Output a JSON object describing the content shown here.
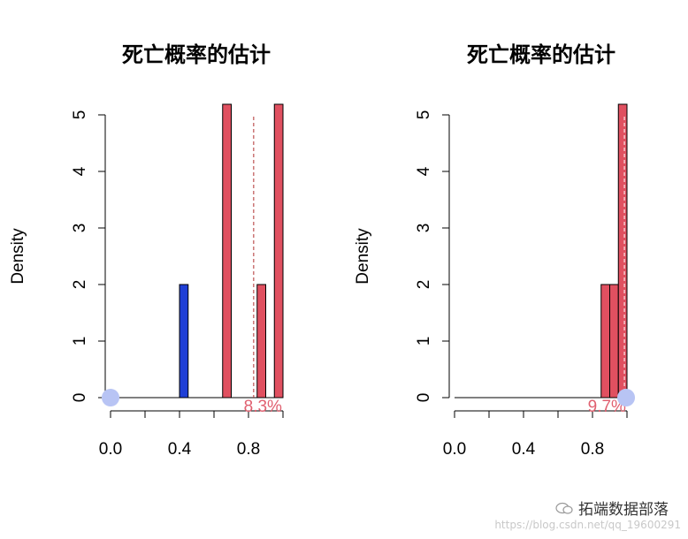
{
  "chart_data": [
    {
      "type": "histogram",
      "title": "死亡概率的估计",
      "ylabel": "Density",
      "xlabel": "",
      "xticks": [
        0.0,
        0.4,
        0.8
      ],
      "xtick_labels": [
        "0.0",
        "0.4",
        "0.8"
      ],
      "yticks": [
        0,
        1,
        2,
        3,
        4,
        5
      ],
      "yticks_labels": [
        "0",
        "1",
        "2",
        "3",
        "4",
        "5"
      ],
      "xlim": [
        0,
        1
      ],
      "ylim": [
        0,
        5
      ],
      "bars": [
        {
          "x0": 0.4,
          "x1": 0.45,
          "density": 2,
          "color": "#1f3fd6"
        },
        {
          "x0": 0.65,
          "x1": 0.7,
          "density": 5.4,
          "color": "#e05060"
        },
        {
          "x0": 0.85,
          "x1": 0.9,
          "density": 2,
          "color": "#e05060"
        },
        {
          "x0": 0.95,
          "x1": 1.0,
          "density": 5.4,
          "color": "#e05060"
        }
      ],
      "vline": {
        "x": 0.83,
        "color": "#b03030"
      },
      "point": {
        "x": 0.0,
        "y": 0,
        "color": "#b8c4f4"
      },
      "annotation": {
        "text": "8.3%",
        "x": 0.74,
        "color": "#e06070"
      }
    },
    {
      "type": "histogram",
      "title": "死亡概率的估计",
      "ylabel": "Density",
      "xlabel": "",
      "xticks": [
        0.0,
        0.4,
        0.8
      ],
      "xtick_labels": [
        "0.0",
        "0.4",
        "0.8"
      ],
      "yticks": [
        0,
        1,
        2,
        3,
        4,
        5
      ],
      "yticks_labels": [
        "0",
        "1",
        "2",
        "3",
        "4",
        "5"
      ],
      "xlim": [
        0,
        1
      ],
      "ylim": [
        0,
        5
      ],
      "bars": [
        {
          "x0": 0.85,
          "x1": 0.9,
          "density": 2,
          "color": "#e05060"
        },
        {
          "x0": 0.9,
          "x1": 0.95,
          "density": 2,
          "color": "#e05060"
        },
        {
          "x0": 0.95,
          "x1": 1.0,
          "density": 5.4,
          "color": "#e05060"
        }
      ],
      "vline": {
        "x": 0.985,
        "color": "#ffffff"
      },
      "point": {
        "x": 0.995,
        "y": 0,
        "color": "#b8c4f4"
      },
      "annotation": {
        "text": "9.7%",
        "x": 0.74,
        "color": "#e06070"
      }
    }
  ],
  "watermark": {
    "brand": "拓端数据部落",
    "url": "https://blog.csdn.net/qq_19600291"
  }
}
